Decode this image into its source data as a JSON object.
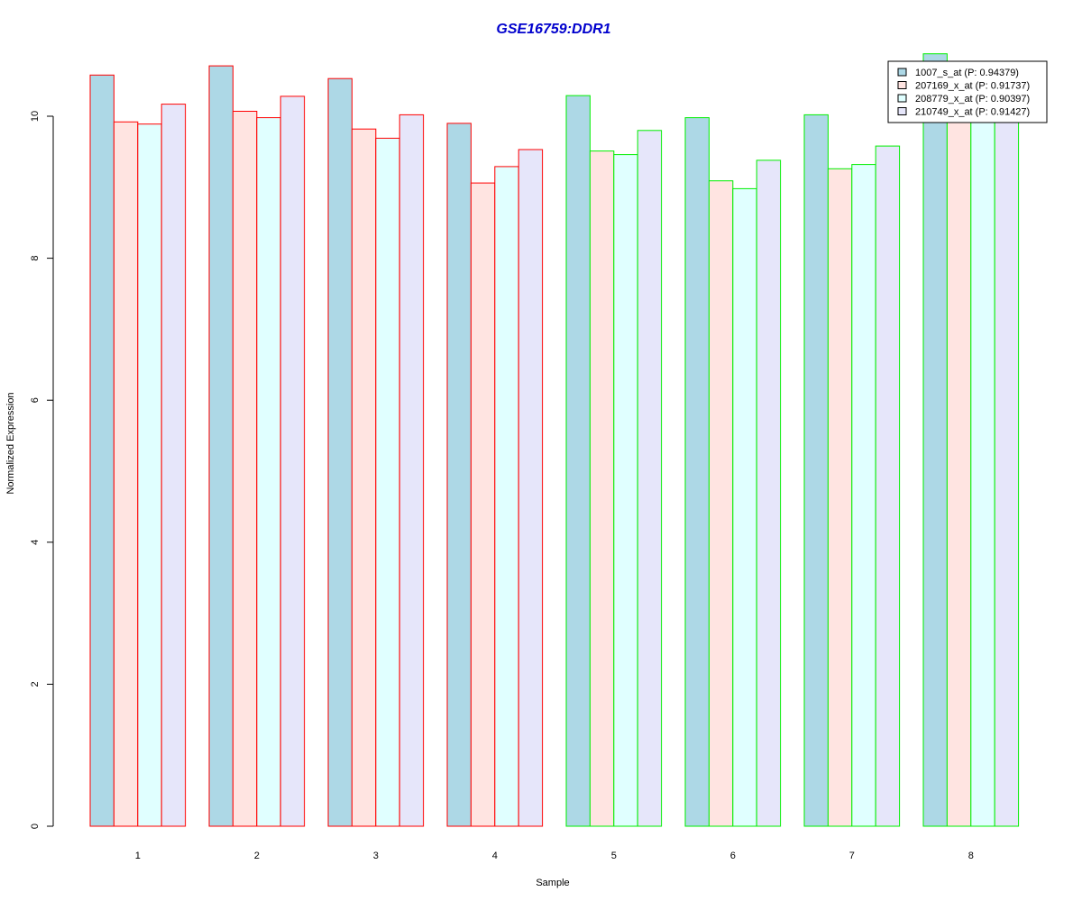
{
  "chart_data": {
    "type": "bar",
    "title": "GSE16759:DDR1",
    "xlabel": "Sample",
    "ylabel": "Normalized Expression",
    "categories": [
      "1",
      "2",
      "3",
      "4",
      "5",
      "6",
      "7",
      "8"
    ],
    "ylim": [
      0,
      10.9
    ],
    "yticks": [
      0,
      2,
      4,
      6,
      8,
      10
    ],
    "grid": false,
    "legend_position": "top-right",
    "series": [
      {
        "name": "1007_s_at (P: 0.94379)",
        "fill": "#add8e6",
        "values": [
          10.58,
          10.71,
          10.53,
          9.9,
          10.29,
          9.98,
          10.02,
          10.88
        ]
      },
      {
        "name": "207169_x_at (P: 0.91737)",
        "fill": "#ffe4e1",
        "values": [
          9.92,
          10.07,
          9.82,
          9.06,
          9.51,
          9.09,
          9.26,
          10.1
        ]
      },
      {
        "name": "208779_x_at (P: 0.90397)",
        "fill": "#e0ffff",
        "values": [
          9.89,
          9.98,
          9.69,
          9.29,
          9.46,
          8.98,
          9.32,
          10.05
        ]
      },
      {
        "name": "210749_x_at (P: 0.91427)",
        "fill": "#e6e6fa",
        "values": [
          10.17,
          10.28,
          10.02,
          9.53,
          9.8,
          9.38,
          9.58,
          10.1
        ]
      }
    ],
    "group_border_colors": [
      "#ff0000",
      "#ff0000",
      "#ff0000",
      "#ff0000",
      "#00ee00",
      "#00ee00",
      "#00ee00",
      "#00ee00"
    ],
    "title_color": "#0000cd"
  }
}
